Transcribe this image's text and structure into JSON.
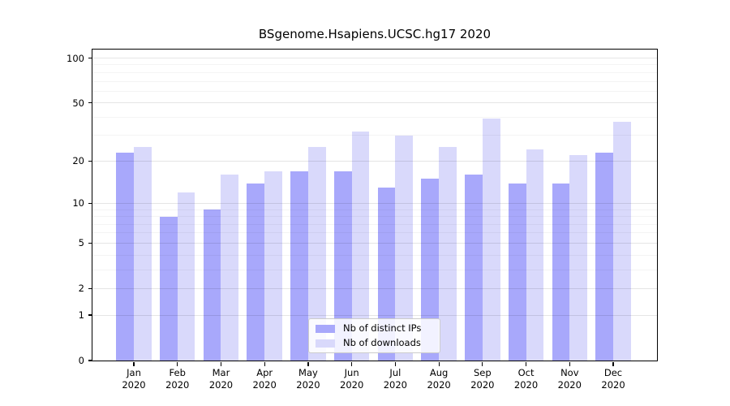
{
  "chart_data": {
    "type": "bar",
    "title": "BSgenome.Hsapiens.UCSC.hg17 2020",
    "x_categories": [
      "Jan",
      "Feb",
      "Mar",
      "Apr",
      "May",
      "Jun",
      "Jul",
      "Aug",
      "Sep",
      "Oct",
      "Nov",
      "Dec"
    ],
    "x_year": "2020",
    "series": [
      {
        "name": "Nb of distinct IPs",
        "color": "#a8a8fb",
        "values": [
          23,
          8,
          9,
          14,
          17,
          17,
          13,
          15,
          16,
          14,
          14,
          23
        ]
      },
      {
        "name": "Nb of downloads",
        "color": "#d9d9fb",
        "values": [
          25,
          12,
          16,
          17,
          25,
          32,
          30,
          25,
          39,
          24,
          22,
          37
        ]
      }
    ],
    "y_axis": {
      "scale": "log1p",
      "ticks": [
        0,
        1,
        2,
        5,
        10,
        20,
        50,
        100
      ],
      "minor_gridlines": [
        3,
        4,
        6,
        7,
        8,
        9,
        30,
        40,
        60,
        70,
        80,
        90
      ],
      "ylim": [
        0,
        115
      ]
    },
    "grid": true,
    "legend_position": "lower center"
  },
  "style": {
    "background": "#ffffff",
    "text_color": "#000000",
    "spine_color": "#000000",
    "major_grid_color": "rgba(0,0,0,0.10)",
    "minor_grid_color": "rgba(0,0,0,0.045)",
    "legend_background": "rgba(255,255,255,0.85)",
    "legend_border": "#cccccc"
  }
}
